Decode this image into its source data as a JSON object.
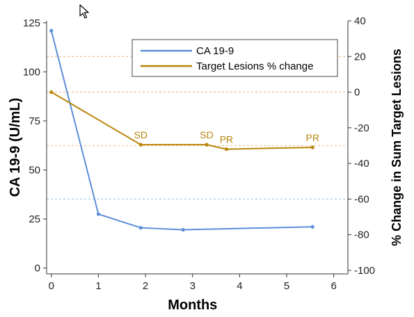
{
  "chart_data": {
    "type": "line",
    "xlabel": "Months",
    "ylabel_left": "CA 19-9 (U/mL)",
    "ylabel_right": "% Change in Sum Target Lesions",
    "xlim": [
      -0.1,
      6.3
    ],
    "ylim_left": [
      -3,
      126
    ],
    "ylim_right": [
      -102,
      40
    ],
    "x_ticks": [
      "0",
      "1",
      "2",
      "3",
      "4",
      "5",
      "6"
    ],
    "y_left_ticks": [
      "0",
      "25",
      "50",
      "75",
      "100",
      "125"
    ],
    "y_right_ticks": [
      "-100",
      "-80",
      "-60",
      "-40",
      "-20",
      "0",
      "20",
      "40"
    ],
    "series": [
      {
        "name": "CA 19-9",
        "axis": "left",
        "color": "#5b8fd9",
        "x": [
          0,
          1,
          1.9,
          2.8,
          5.55
        ],
        "y": [
          121,
          27.5,
          20.5,
          19.5,
          21
        ]
      },
      {
        "name": "Target Lesions % change",
        "axis": "right",
        "color": "#b8860b",
        "x": [
          0,
          1.9,
          3.3,
          3.72,
          5.55
        ],
        "y": [
          0,
          -29.5,
          -29.5,
          -32,
          -31
        ]
      }
    ],
    "annotations": [
      {
        "text": "SD",
        "x": 1.9,
        "y": -29.5
      },
      {
        "text": "SD",
        "x": 3.3,
        "y": -29.5
      },
      {
        "text": "PR",
        "x": 3.72,
        "y": -32
      },
      {
        "text": "PR",
        "x": 5.55,
        "y": -31
      }
    ],
    "reference_lines": [
      {
        "axis": "right",
        "y": 20,
        "color": "#f0c090"
      },
      {
        "axis": "right",
        "y": 0,
        "color": "#f0c090"
      },
      {
        "axis": "right",
        "y": -30,
        "color": "#f0c090"
      },
      {
        "axis": "right",
        "y": -60,
        "color": "#a9cbe8"
      }
    ],
    "legend_position": "top-center",
    "grid": false
  }
}
